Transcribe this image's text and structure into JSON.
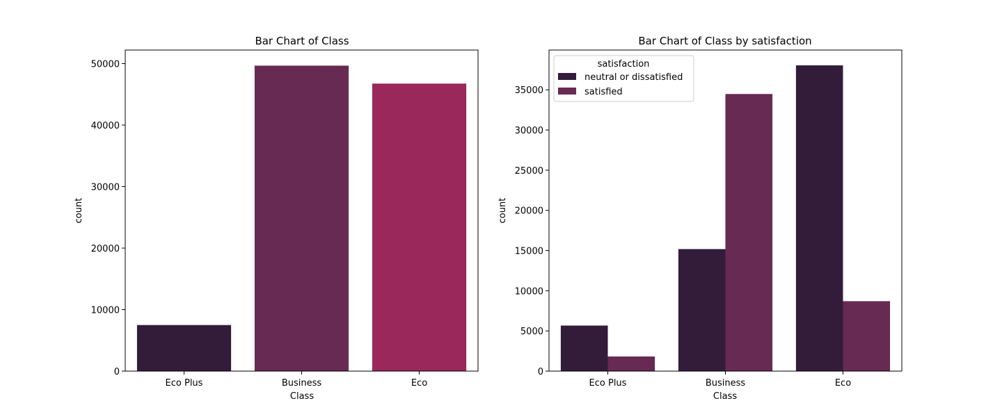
{
  "chart_data": [
    {
      "type": "bar",
      "title": "Bar Chart of Class",
      "xlabel": "Class",
      "ylabel": "count",
      "categories": [
        "Eco Plus",
        "Business",
        "Eco"
      ],
      "values": [
        7494,
        49665,
        46745
      ],
      "colors": [
        "#331c3a",
        "#672a52",
        "#9a285b"
      ],
      "ylim": [
        0,
        52200
      ],
      "yticks": [
        0,
        10000,
        20000,
        30000,
        40000,
        50000
      ],
      "grid": false
    },
    {
      "type": "bar",
      "title": "Bar Chart of Class by satisfaction",
      "xlabel": "Class",
      "ylabel": "count",
      "categories": [
        "Eco Plus",
        "Business",
        "Eco"
      ],
      "legend_title": "satisfaction",
      "legend_position": "top-left",
      "series": [
        {
          "name": "neutral or dissatisfied",
          "color": "#331c3a",
          "values": [
            5670,
            15185,
            38044
          ]
        },
        {
          "name": "satisfied",
          "color": "#672a52",
          "values": [
            1824,
            34480,
            8701
          ]
        }
      ],
      "ylim": [
        0,
        39950
      ],
      "yticks": [
        0,
        5000,
        10000,
        15000,
        20000,
        25000,
        30000,
        35000
      ],
      "grid": false
    }
  ]
}
